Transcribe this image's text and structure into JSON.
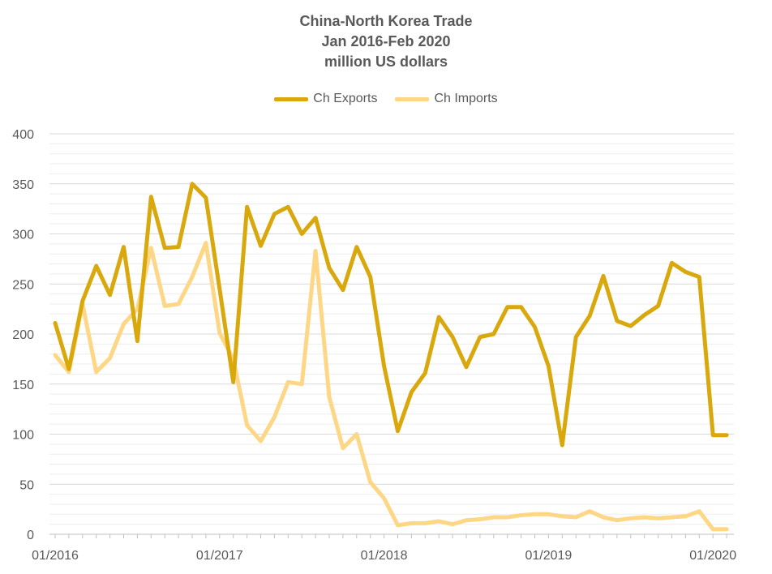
{
  "chart_data": {
    "type": "line",
    "title": [
      "China-North Korea Trade",
      "Jan 2016-Feb 2020",
      "million US dollars"
    ],
    "ylim": [
      0,
      400
    ],
    "yticks": [
      0,
      50,
      100,
      150,
      200,
      250,
      300,
      350,
      400
    ],
    "x_start": "01/2016",
    "x_tick_labels": [
      "01/2016",
      "01/2017",
      "01/2018",
      "01/2019",
      "01/2020"
    ],
    "legend_position": "top-center",
    "grid": true,
    "series": [
      {
        "name": "Ch Exports",
        "color": "#d8a80d",
        "values": [
          211,
          165,
          233,
          268,
          239,
          287,
          193,
          337,
          286,
          287,
          350,
          336,
          245,
          152,
          327,
          288,
          320,
          327,
          300,
          316,
          266,
          244,
          287,
          257,
          168,
          103,
          142,
          161,
          217,
          197,
          167,
          197,
          200,
          227,
          227,
          207,
          168,
          89,
          197,
          218,
          258,
          213,
          208,
          219,
          228,
          271,
          262,
          257,
          99,
          99
        ]
      },
      {
        "name": "Ch Imports",
        "color": "#fdd686",
        "values": [
          179,
          162,
          230,
          162,
          176,
          210,
          225,
          286,
          228,
          230,
          257,
          291,
          201,
          175,
          109,
          93,
          117,
          152,
          150,
          283,
          137,
          86,
          100,
          52,
          36,
          9,
          11,
          11,
          13,
          10,
          14,
          15,
          17,
          17,
          19,
          20,
          20,
          18,
          17,
          23,
          17,
          14,
          16,
          17,
          16,
          17,
          18,
          23,
          5,
          5
        ]
      }
    ]
  }
}
